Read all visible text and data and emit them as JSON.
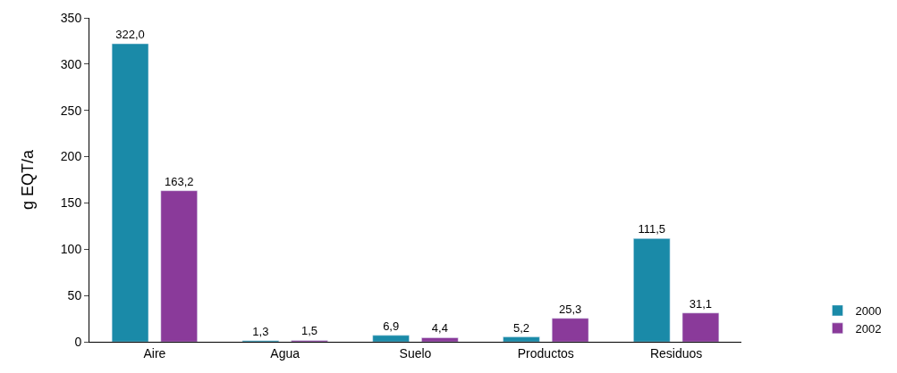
{
  "chart_data": {
    "type": "bar",
    "ylabel": "g EQT/a",
    "categories": [
      "Aire",
      "Agua",
      "Suelo",
      "Productos",
      "Residuos"
    ],
    "series": [
      {
        "name": "2000",
        "color": "#1a8aa8",
        "values": [
          322.0,
          1.3,
          6.9,
          5.2,
          111.5
        ],
        "value_labels": [
          "322,0",
          "1,3",
          "6,9",
          "5,2",
          "111,5"
        ]
      },
      {
        "name": "2002",
        "color": "#8a3a9a",
        "values": [
          163.2,
          1.5,
          4.4,
          25.3,
          31.1
        ],
        "value_labels": [
          "163,2",
          "1,5",
          "4,4",
          "25,3",
          "31,1"
        ]
      }
    ],
    "ylim": [
      0,
      350
    ],
    "yticks": [
      0,
      50,
      100,
      150,
      200,
      250,
      300,
      350
    ],
    "legend": "bottom right"
  }
}
